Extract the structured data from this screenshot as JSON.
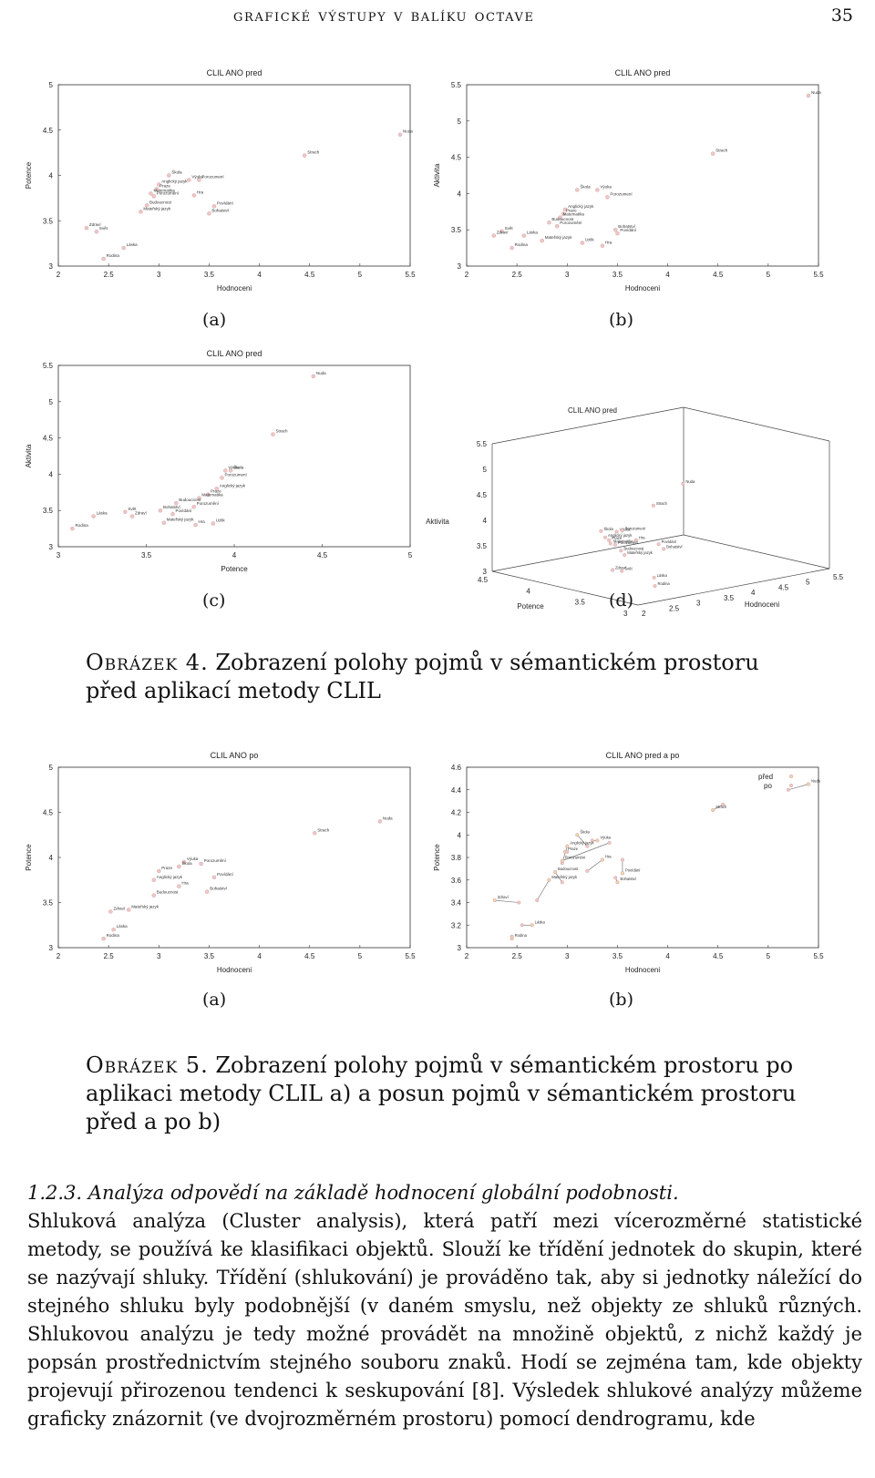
{
  "running_head": {
    "title": "grafické výstupy v balíku octave",
    "page": "35"
  },
  "figure4": {
    "caption_label": "Obrázek 4.",
    "caption_text": "Zobrazení polohy pojmů v sémantickém prostoru před aplikací metody CLIL",
    "sub": [
      "(a)",
      "(b)",
      "(c)",
      "(d)"
    ]
  },
  "figure5": {
    "caption_label": "Obrázek 5.",
    "caption_text": "Zobrazení polohy pojmů v sémantickém prostoru po aplikaci metody CLIL a) a posun pojmů v sémantickém prostoru před a po b)",
    "sub": [
      "(a)",
      "(b)"
    ]
  },
  "section": {
    "number": "1.2.3.",
    "title": "Analýza odpovědí na základě hodnocení globální podobnosti.",
    "text": "Shluková analýza (Cluster analysis), která patří mezi vícerozměrné statistické metody, se používá ke klasifikaci objektů. Slouží ke třídění jednotek do skupin, které se nazývají shluky. Třídění (shlukování) je prováděno tak, aby si jednotky náležící do stejného shluku byly podobnější (v daném smyslu, než objekty ze shluků různých. Shlukovou analýzu je tedy možné provádět na množině objektů, z nichž každý je popsán prostřednictvím stejného souboru znaků. Hodí se zejména tam, kde objekty projevují přirozenou tendenci k seskupování [8]. Výsledek shlukové analýzy můžeme graficky znázornit (ve dvojrozměrném prostoru) pomocí dendrogramu, kde"
  },
  "chart_data": [
    {
      "id": "4a",
      "type": "scatter",
      "title": "CLIL ANO pred",
      "xlabel": "Hodnoceni",
      "ylabel": "Potence",
      "xlim": [
        2,
        5.5
      ],
      "ylim": [
        3,
        5
      ],
      "xticks": [
        2,
        2.5,
        3,
        3.5,
        4,
        4.5,
        5,
        5.5
      ],
      "yticks": [
        3,
        3.5,
        4,
        4.5,
        5
      ],
      "points": [
        {
          "label": "Škola",
          "x": 3.1,
          "y": 4.0
        },
        {
          "label": "Výuka",
          "x": 3.3,
          "y": 3.95
        },
        {
          "label": "Porozumení",
          "x": 3.4,
          "y": 3.95
        },
        {
          "label": "Anglický jazyk",
          "x": 3.0,
          "y": 3.9
        },
        {
          "label": "Praze",
          "x": 2.98,
          "y": 3.85
        },
        {
          "label": "Matematika",
          "x": 2.92,
          "y": 3.8
        },
        {
          "label": "Porozumění",
          "x": 2.95,
          "y": 3.77
        },
        {
          "label": "Hra",
          "x": 3.35,
          "y": 3.78
        },
        {
          "label": "Budoucnost",
          "x": 2.88,
          "y": 3.67
        },
        {
          "label": "Mateřský jazyk",
          "x": 2.82,
          "y": 3.6
        },
        {
          "label": "Povídání",
          "x": 3.55,
          "y": 3.66
        },
        {
          "label": "Bohatství",
          "x": 3.5,
          "y": 3.58
        },
        {
          "label": "Zdraví",
          "x": 2.28,
          "y": 3.42
        },
        {
          "label": "Svět",
          "x": 2.38,
          "y": 3.38
        },
        {
          "label": "Láska",
          "x": 2.65,
          "y": 3.2
        },
        {
          "label": "Rodina",
          "x": 2.45,
          "y": 3.08
        },
        {
          "label": "Strach",
          "x": 4.45,
          "y": 4.22
        },
        {
          "label": "Nuda",
          "x": 5.4,
          "y": 4.45
        }
      ]
    },
    {
      "id": "4b",
      "type": "scatter",
      "title": "CLIL ANO pred",
      "xlabel": "Hodnoceni",
      "ylabel": "Aktivita",
      "xlim": [
        2,
        5.5
      ],
      "ylim": [
        3,
        5.5
      ],
      "xticks": [
        2,
        2.5,
        3,
        3.5,
        4,
        4.5,
        5,
        5.5
      ],
      "yticks": [
        3,
        3.5,
        4,
        4.5,
        5,
        5.5
      ],
      "points": [
        {
          "label": "Škola",
          "x": 3.1,
          "y": 4.05
        },
        {
          "label": "Výuka",
          "x": 3.3,
          "y": 4.05
        },
        {
          "label": "Porozumení",
          "x": 3.4,
          "y": 3.95
        },
        {
          "label": "Anglický jazyk",
          "x": 2.98,
          "y": 3.78
        },
        {
          "label": "Praze",
          "x": 2.96,
          "y": 3.72
        },
        {
          "label": "Matematika",
          "x": 2.93,
          "y": 3.67
        },
        {
          "label": "Budoucnost",
          "x": 2.82,
          "y": 3.6
        },
        {
          "label": "Porozumění",
          "x": 2.9,
          "y": 3.55
        },
        {
          "label": "Svět",
          "x": 2.35,
          "y": 3.48
        },
        {
          "label": "Zdraví",
          "x": 2.27,
          "y": 3.42
        },
        {
          "label": "Láska",
          "x": 2.57,
          "y": 3.42
        },
        {
          "label": "Mateřský jazyk",
          "x": 2.75,
          "y": 3.35
        },
        {
          "label": "Rodina",
          "x": 2.45,
          "y": 3.25
        },
        {
          "label": "Uzlik",
          "x": 3.15,
          "y": 3.32
        },
        {
          "label": "Hra",
          "x": 3.35,
          "y": 3.28
        },
        {
          "label": "Bohatství",
          "x": 3.48,
          "y": 3.5
        },
        {
          "label": "Povídání",
          "x": 3.5,
          "y": 3.45
        },
        {
          "label": "Strach",
          "x": 4.45,
          "y": 4.55
        },
        {
          "label": "Nuda",
          "x": 5.4,
          "y": 5.35
        }
      ]
    },
    {
      "id": "4c",
      "type": "scatter",
      "title": "CLIL ANO pred",
      "xlabel": "Potence",
      "ylabel": "Aktivita",
      "xlim": [
        3,
        5
      ],
      "ylim": [
        3,
        5.5
      ],
      "xticks": [
        3,
        3.5,
        4,
        4.5,
        5
      ],
      "yticks": [
        3,
        3.5,
        4,
        4.5,
        5,
        5.5
      ],
      "points": [
        {
          "label": "Výuka",
          "x": 3.95,
          "y": 4.05
        },
        {
          "label": "Škola",
          "x": 3.98,
          "y": 4.05
        },
        {
          "label": "Porozumení",
          "x": 3.93,
          "y": 3.95
        },
        {
          "label": "Anglický jazyk",
          "x": 3.9,
          "y": 3.8
        },
        {
          "label": "Praze",
          "x": 3.85,
          "y": 3.72
        },
        {
          "label": "Matematika",
          "x": 3.8,
          "y": 3.67
        },
        {
          "label": "Budoucnost",
          "x": 3.67,
          "y": 3.6
        },
        {
          "label": "Porozumění",
          "x": 3.77,
          "y": 3.55
        },
        {
          "label": "Bohatství",
          "x": 3.58,
          "y": 3.5
        },
        {
          "label": "Povídání",
          "x": 3.65,
          "y": 3.45
        },
        {
          "label": "Mateřský jazyk",
          "x": 3.6,
          "y": 3.33
        },
        {
          "label": "Hra",
          "x": 3.78,
          "y": 3.3
        },
        {
          "label": "Uzlik",
          "x": 3.88,
          "y": 3.32
        },
        {
          "label": "Svět",
          "x": 3.38,
          "y": 3.48
        },
        {
          "label": "Zdraví",
          "x": 3.42,
          "y": 3.42
        },
        {
          "label": "Láska",
          "x": 3.2,
          "y": 3.42
        },
        {
          "label": "Rodina",
          "x": 3.08,
          "y": 3.25
        },
        {
          "label": "Strach",
          "x": 4.22,
          "y": 4.55
        },
        {
          "label": "Nuda",
          "x": 4.45,
          "y": 5.35
        }
      ]
    },
    {
      "id": "4d",
      "type": "scatter3d",
      "title": "CLIL ANO pred",
      "xlabel": "Hodnoceni",
      "ylabel": "Potence",
      "zlabel": "Aktivita",
      "xticks": [
        2,
        2.5,
        3,
        3.5,
        4,
        4.5,
        5,
        5.5
      ],
      "yticks": [
        3,
        3.5,
        4,
        4.5
      ],
      "zticks": [
        3,
        3.5,
        4,
        4.5,
        5,
        5.5
      ]
    },
    {
      "id": "5a",
      "type": "scatter",
      "title": "CLIL ANO po",
      "xlabel": "Hodnoceni",
      "ylabel": "Potence",
      "xlim": [
        2,
        5.5
      ],
      "ylim": [
        3,
        5
      ],
      "xticks": [
        2,
        2.5,
        3,
        3.5,
        4,
        4.5,
        5,
        5.5
      ],
      "yticks": [
        3,
        3.5,
        4,
        4.5,
        5
      ],
      "points": [
        {
          "label": "Výuka",
          "x": 3.25,
          "y": 3.95
        },
        {
          "label": "Porozumění",
          "x": 3.42,
          "y": 3.93
        },
        {
          "label": "Škola",
          "x": 3.2,
          "y": 3.9
        },
        {
          "label": "Praze",
          "x": 3.0,
          "y": 3.85
        },
        {
          "label": "Anglický jazyk",
          "x": 2.95,
          "y": 3.75
        },
        {
          "label": "Hra",
          "x": 3.2,
          "y": 3.68
        },
        {
          "label": "Budoucnost",
          "x": 2.95,
          "y": 3.58
        },
        {
          "label": "Povídání",
          "x": 3.55,
          "y": 3.78
        },
        {
          "label": "Bohatství",
          "x": 3.48,
          "y": 3.62
        },
        {
          "label": "Mateřský jazyk",
          "x": 2.7,
          "y": 3.42
        },
        {
          "label": "Zdraví",
          "x": 2.52,
          "y": 3.4
        },
        {
          "label": "Láska",
          "x": 2.55,
          "y": 3.2
        },
        {
          "label": "Rodina",
          "x": 2.45,
          "y": 3.1
        },
        {
          "label": "Strach",
          "x": 4.55,
          "y": 4.27
        },
        {
          "label": "Nuda",
          "x": 5.2,
          "y": 4.4
        }
      ]
    },
    {
      "id": "5b",
      "type": "scatter",
      "title": "CLIL ANO pred a po",
      "xlabel": "Hodnoceni",
      "ylabel": "Potence",
      "xlim": [
        2,
        5.5
      ],
      "ylim": [
        3,
        4.6
      ],
      "xticks": [
        2,
        2.5,
        3,
        3.5,
        4,
        4.5,
        5,
        5.5
      ],
      "yticks": [
        3,
        3.2,
        3.4,
        3.6,
        3.8,
        4,
        4.2,
        4.4,
        4.6
      ],
      "legend": [
        "před",
        "po"
      ],
      "legend_position": "top-right"
    }
  ]
}
